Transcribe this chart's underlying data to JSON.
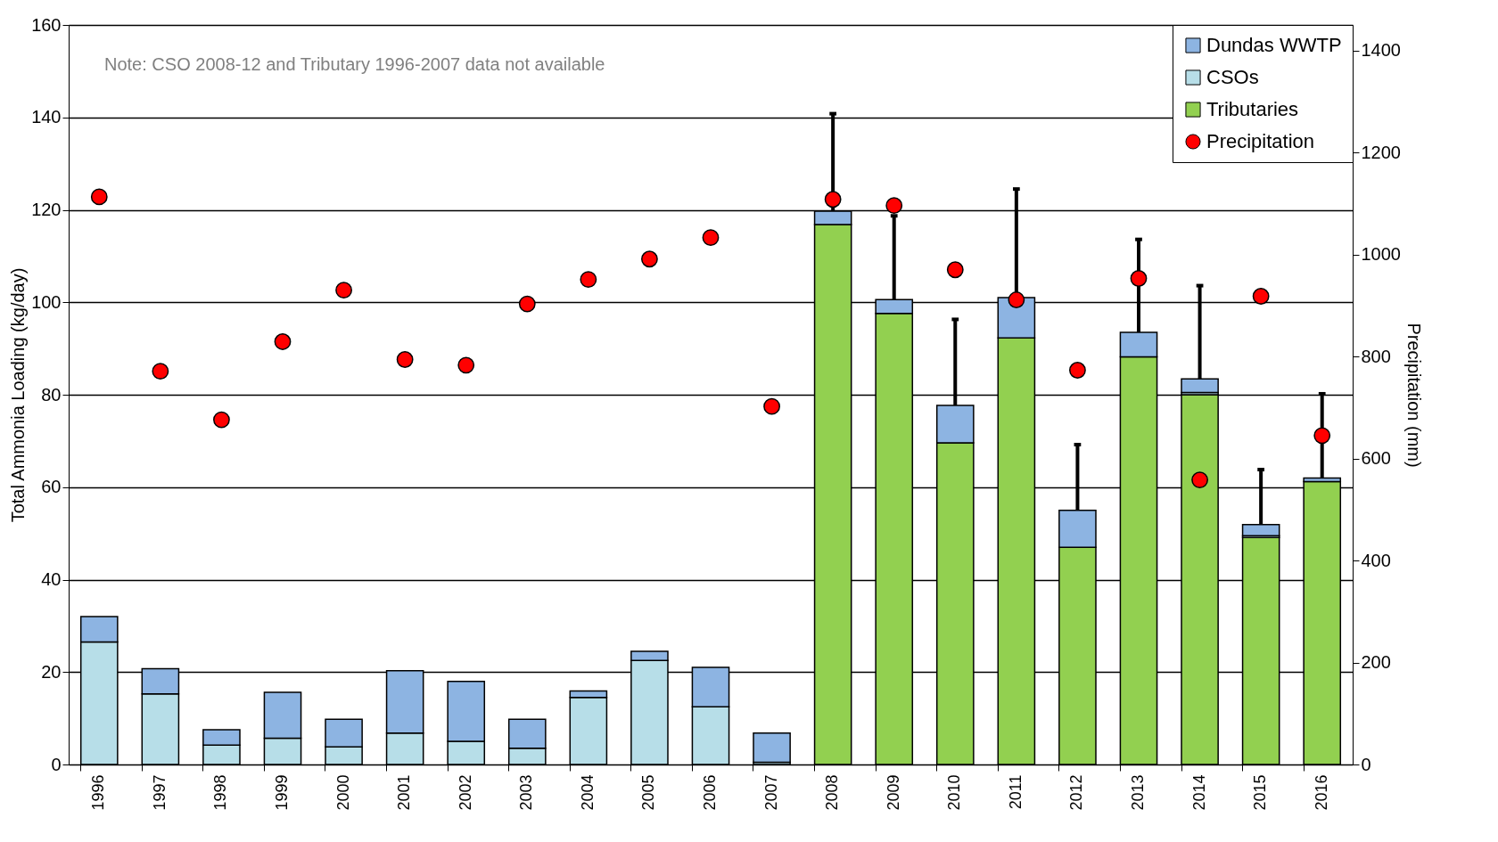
{
  "chart_data": {
    "type": "bar",
    "stacked": true,
    "xlabel": null,
    "ylabel": "Total Ammonia Loading (kg/day)",
    "y2label": "Precipitation (mm)",
    "categories": [
      "1996",
      "1997",
      "1998",
      "1999",
      "2000",
      "2001",
      "2002",
      "2003",
      "2004",
      "2005",
      "2006",
      "2007",
      "2008",
      "2009",
      "2010",
      "2011",
      "2012",
      "2013",
      "2014",
      "2015",
      "2016"
    ],
    "series": [
      {
        "name": "Tributaries",
        "color": "#92d050",
        "values": [
          null,
          null,
          null,
          null,
          null,
          null,
          null,
          null,
          null,
          null,
          null,
          null,
          116.8,
          97.6,
          69.6,
          92.3,
          47.0,
          88.2,
          80.0,
          49.1,
          61.2
        ]
      },
      {
        "name": "CSOs",
        "color": "#b7dee8",
        "values": [
          26.5,
          15.3,
          4.2,
          5.7,
          3.8,
          6.8,
          5.0,
          3.5,
          14.5,
          22.5,
          12.5,
          0.5,
          null,
          null,
          null,
          null,
          null,
          null,
          0.5,
          0.4,
          null
        ]
      },
      {
        "name": "Dundas WWTP",
        "color": "#8db4e2",
        "values": [
          5.5,
          5.4,
          3.3,
          9.9,
          6.0,
          13.5,
          13.0,
          6.3,
          1.4,
          2.0,
          8.5,
          6.3,
          2.9,
          3.0,
          8.1,
          8.7,
          8.0,
          5.3,
          2.9,
          2.4,
          0.8
        ],
        "errors": [
          null,
          null,
          null,
          null,
          null,
          null,
          null,
          null,
          null,
          null,
          null,
          null,
          [
            119.7,
            140.8
          ],
          [
            100.6,
            118.7
          ],
          [
            77.7,
            96.3
          ],
          [
            101.0,
            124.5
          ],
          [
            55.0,
            69.2
          ],
          [
            93.5,
            113.6
          ],
          [
            83.4,
            103.6
          ],
          [
            51.9,
            63.8
          ],
          [
            62.0,
            80.2
          ]
        ]
      },
      {
        "name": "Precipitation",
        "type": "scatter",
        "axis": "y2",
        "color": "#ff0000",
        "marker": "circle",
        "values": [
          1113,
          771,
          676,
          829,
          930,
          794,
          783,
          903,
          951,
          991,
          1033,
          702,
          1108,
          1096,
          970,
          911,
          773,
          953,
          558,
          918,
          645
        ]
      }
    ],
    "ylim": [
      0,
      160
    ],
    "yticks": [
      0,
      20,
      40,
      60,
      80,
      100,
      120,
      140,
      160
    ],
    "y2lim": [
      0,
      1450
    ],
    "y2ticks": [
      0,
      200,
      400,
      600,
      800,
      {
        "value": 1000,
        "label": "1000"
      },
      {
        "value": 1200,
        "label": "1200"
      },
      {
        "value": 1400,
        "label": "1400"
      }
    ],
    "grid": "y",
    "legend": "top right",
    "annotations": [
      "Note: CSO 2008-12 and Tributary 1996-2007 data not available"
    ]
  }
}
